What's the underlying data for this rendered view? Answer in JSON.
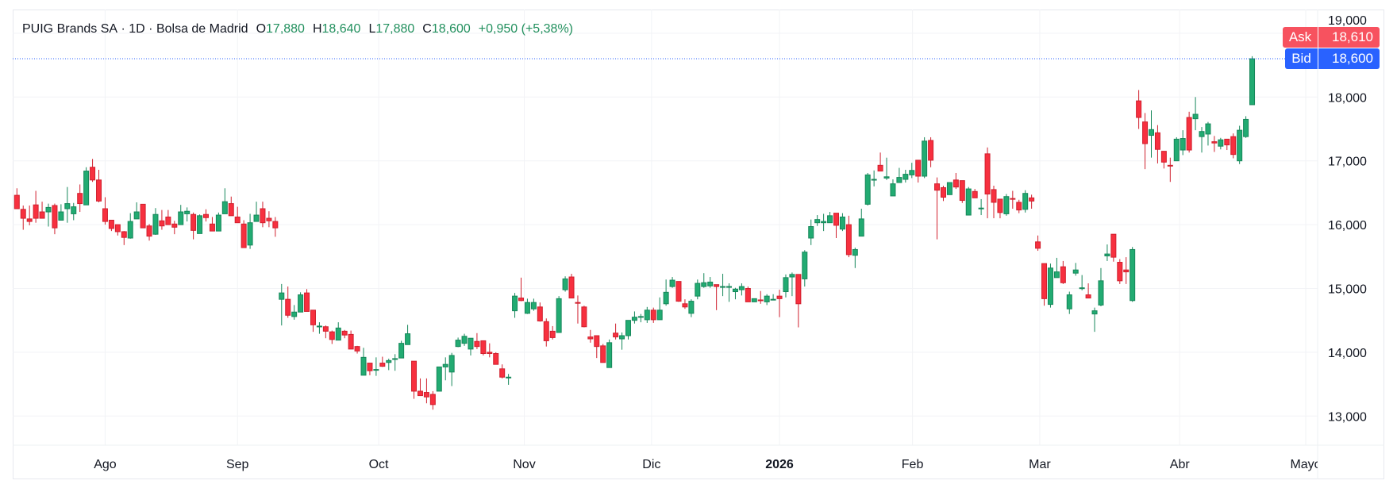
{
  "header": {
    "symbol": "PUIG Brands SA",
    "sep1": " · ",
    "interval": "1D",
    "sep2": " · ",
    "exchange": "Bolsa de Madrid",
    "open_label": "O",
    "open": "17,880",
    "high_label": "H",
    "high": "18,640",
    "low_label": "L",
    "low": "17,880",
    "close_label": "C",
    "close": "18,600",
    "change": "+0,950 (+5,38%)"
  },
  "quote": {
    "ask_label": "Ask",
    "ask": "18,610",
    "bid_label": "Bid",
    "bid": "18,600"
  },
  "colors": {
    "up": "#22ab72",
    "up_border": "#16875a",
    "down": "#f7303f",
    "down_border": "#d0202e",
    "ask": "#f7525f",
    "bid": "#2962ff",
    "grid": "#f2f3f6",
    "text": "#131722",
    "header_value": "#22905e"
  },
  "chart_data": {
    "type": "candlestick",
    "ohlc_order": [
      "open",
      "high",
      "low",
      "close"
    ],
    "ylim": [
      12500,
      19250
    ],
    "grid": true,
    "y_ticks": [
      {
        "value": 13000,
        "label": "13,000"
      },
      {
        "value": 14000,
        "label": "14,000"
      },
      {
        "value": 15000,
        "label": "15,000"
      },
      {
        "value": 16000,
        "label": "16,000"
      },
      {
        "value": 17000,
        "label": "17,000"
      },
      {
        "value": 18000,
        "label": "18,000"
      },
      {
        "value": 19000,
        "label": "19,000"
      }
    ],
    "x_ticks": [
      {
        "bar": 14,
        "label": "Ago",
        "bold": false
      },
      {
        "bar": 35,
        "label": "Sep",
        "bold": false
      },
      {
        "bar": 57.4,
        "label": "Oct",
        "bold": false
      },
      {
        "bar": 80.5,
        "label": "Nov",
        "bold": false
      },
      {
        "bar": 100.7,
        "label": "Dic",
        "bold": false
      },
      {
        "bar": 121,
        "label": "2026",
        "bold": true
      },
      {
        "bar": 142.1,
        "label": "Feb",
        "bold": false
      },
      {
        "bar": 162.3,
        "label": "Mar",
        "bold": false
      },
      {
        "bar": 184.5,
        "label": "Abr",
        "bold": false
      },
      {
        "bar": 204.5,
        "label": "Mayo",
        "bold": false
      }
    ],
    "bid_line": 18600,
    "candles": [
      [
        16460,
        16570,
        16250,
        16250
      ],
      [
        16240,
        16300,
        15920,
        16100
      ],
      [
        16090,
        16300,
        15990,
        16050
      ],
      [
        16310,
        16530,
        16030,
        16100
      ],
      [
        16200,
        16360,
        16100,
        16100
      ],
      [
        16200,
        16330,
        15970,
        16270
      ],
      [
        16300,
        16330,
        15850,
        15950
      ],
      [
        16070,
        16320,
        16070,
        16200
      ],
      [
        16250,
        16590,
        16030,
        16330
      ],
      [
        16170,
        16340,
        16070,
        16280
      ],
      [
        16490,
        16630,
        16200,
        16330
      ],
      [
        16310,
        16900,
        16310,
        16840
      ],
      [
        16900,
        17030,
        16670,
        16700
      ],
      [
        16700,
        16860,
        16350,
        16370
      ],
      [
        16250,
        16430,
        16000,
        16050
      ],
      [
        16070,
        16070,
        15900,
        15940
      ],
      [
        16000,
        16000,
        15830,
        15890
      ],
      [
        15890,
        15900,
        15680,
        15800
      ],
      [
        15790,
        16180,
        15780,
        16050
      ],
      [
        16090,
        16350,
        16090,
        16200
      ],
      [
        16320,
        16320,
        15950,
        15950
      ],
      [
        15980,
        16010,
        15750,
        15820
      ],
      [
        15850,
        16260,
        15840,
        16160
      ],
      [
        16060,
        16230,
        15920,
        15980
      ],
      [
        16120,
        16230,
        16000,
        16000
      ],
      [
        16010,
        16060,
        15850,
        15960
      ],
      [
        16000,
        16310,
        16000,
        16200
      ],
      [
        16170,
        16270,
        16050,
        16210
      ],
      [
        16160,
        16190,
        15770,
        15910
      ],
      [
        15860,
        16160,
        15860,
        16140
      ],
      [
        16160,
        16240,
        16050,
        16110
      ],
      [
        16010,
        16120,
        15900,
        15900
      ],
      [
        15900,
        16190,
        15900,
        16150
      ],
      [
        16170,
        16570,
        16170,
        16360
      ],
      [
        16330,
        16440,
        16140,
        16140
      ],
      [
        16120,
        16280,
        16030,
        16030
      ],
      [
        16010,
        16070,
        15640,
        15640
      ],
      [
        15680,
        16170,
        15620,
        16030
      ],
      [
        16050,
        16360,
        16050,
        16150
      ],
      [
        16250,
        16360,
        15960,
        16030
      ],
      [
        16100,
        16210,
        15960,
        16060
      ],
      [
        16050,
        16120,
        15810,
        15950
      ],
      [
        14830,
        15070,
        14420,
        14930
      ],
      [
        14830,
        15030,
        14540,
        14580
      ],
      [
        14560,
        14740,
        14510,
        14630
      ],
      [
        14630,
        14940,
        14630,
        14900
      ],
      [
        14930,
        14990,
        14640,
        14640
      ],
      [
        14660,
        14660,
        14320,
        14430
      ],
      [
        14400,
        14470,
        14290,
        14410
      ],
      [
        14400,
        14420,
        14220,
        14330
      ],
      [
        14320,
        14340,
        14130,
        14200
      ],
      [
        14190,
        14470,
        14190,
        14380
      ],
      [
        14330,
        14350,
        14220,
        14270
      ],
      [
        14280,
        14340,
        14050,
        14050
      ],
      [
        14090,
        14100,
        13980,
        14020
      ],
      [
        13640,
        14070,
        13640,
        13920
      ],
      [
        13830,
        13830,
        13640,
        13710
      ],
      [
        13720,
        13920,
        13630,
        13730
      ],
      [
        13830,
        13930,
        13770,
        13780
      ],
      [
        13840,
        13900,
        13720,
        13870
      ],
      [
        13890,
        13970,
        13710,
        13900
      ],
      [
        13910,
        14180,
        13910,
        14140
      ],
      [
        14120,
        14430,
        14120,
        14290
      ],
      [
        13860,
        13860,
        13270,
        13390
      ],
      [
        13390,
        13590,
        13320,
        13320
      ],
      [
        13370,
        13590,
        13200,
        13300
      ],
      [
        13340,
        13390,
        13100,
        13180
      ],
      [
        13390,
        13770,
        13390,
        13770
      ],
      [
        13770,
        13920,
        13560,
        13810
      ],
      [
        13690,
        13990,
        13470,
        13950
      ],
      [
        14090,
        14230,
        14080,
        14190
      ],
      [
        14140,
        14290,
        14100,
        14250
      ],
      [
        14050,
        14220,
        13950,
        14220
      ],
      [
        14170,
        14300,
        14050,
        14090
      ],
      [
        14180,
        14180,
        13950,
        13980
      ],
      [
        14000,
        14140,
        13920,
        13980
      ],
      [
        13980,
        14000,
        13810,
        13810
      ],
      [
        13740,
        13810,
        13590,
        13610
      ],
      [
        13600,
        13660,
        13490,
        13610
      ],
      [
        14650,
        14930,
        14540,
        14880
      ],
      [
        14850,
        15170,
        14800,
        14810
      ],
      [
        14610,
        14840,
        14600,
        14780
      ],
      [
        14680,
        14840,
        14650,
        14780
      ],
      [
        14710,
        14780,
        14480,
        14490
      ],
      [
        14480,
        14530,
        14090,
        14180
      ],
      [
        14330,
        14410,
        14200,
        14230
      ],
      [
        14310,
        14880,
        14310,
        14840
      ],
      [
        14980,
        15190,
        14950,
        15150
      ],
      [
        15180,
        15230,
        14850,
        14850
      ],
      [
        14780,
        14890,
        14450,
        14770
      ],
      [
        14710,
        14730,
        14390,
        14400
      ],
      [
        14240,
        14350,
        14150,
        14210
      ],
      [
        14260,
        14260,
        13910,
        14090
      ],
      [
        14100,
        14130,
        13840,
        13840
      ],
      [
        13760,
        14200,
        13760,
        14150
      ],
      [
        14300,
        14450,
        14200,
        14240
      ],
      [
        14210,
        14310,
        14040,
        14260
      ],
      [
        14260,
        14500,
        14200,
        14500
      ],
      [
        14500,
        14640,
        14450,
        14550
      ],
      [
        14550,
        14600,
        14470,
        14560
      ],
      [
        14510,
        14710,
        14460,
        14660
      ],
      [
        14660,
        14700,
        14460,
        14510
      ],
      [
        14510,
        14860,
        14510,
        14660
      ],
      [
        14760,
        15140,
        14730,
        14940
      ],
      [
        15030,
        15180,
        15010,
        15130
      ],
      [
        15110,
        15110,
        14790,
        14800
      ],
      [
        14760,
        14830,
        14680,
        14710
      ],
      [
        14610,
        14830,
        14550,
        14800
      ],
      [
        14880,
        15140,
        14830,
        15080
      ],
      [
        15030,
        15240,
        15010,
        15090
      ],
      [
        15040,
        15180,
        15010,
        15100
      ],
      [
        15060,
        15060,
        14660,
        15030
      ],
      [
        15020,
        15230,
        14880,
        15030
      ],
      [
        15020,
        15080,
        14790,
        15030
      ],
      [
        14950,
        15010,
        14830,
        14990
      ],
      [
        14980,
        15080,
        14890,
        15030
      ],
      [
        15000,
        15030,
        14790,
        14790
      ],
      [
        14790,
        14840,
        14790,
        14840
      ],
      [
        14820,
        14960,
        14760,
        14810
      ],
      [
        14790,
        14910,
        14740,
        14880
      ],
      [
        14820,
        14910,
        14820,
        14830
      ],
      [
        14880,
        14980,
        14550,
        14840
      ],
      [
        14950,
        15220,
        14860,
        15170
      ],
      [
        15180,
        15250,
        14880,
        15220
      ],
      [
        15220,
        15220,
        14390,
        14760
      ],
      [
        15150,
        15600,
        15030,
        15570
      ],
      [
        15790,
        16080,
        15680,
        15970
      ],
      [
        16030,
        16150,
        15980,
        16080
      ],
      [
        16030,
        16170,
        15900,
        16050
      ],
      [
        16030,
        16200,
        16030,
        16140
      ],
      [
        16180,
        16180,
        15790,
        15990
      ],
      [
        15930,
        16180,
        15900,
        16120
      ],
      [
        16000,
        16140,
        15490,
        15530
      ],
      [
        15520,
        15640,
        15320,
        15610
      ],
      [
        15820,
        16250,
        15820,
        16090
      ],
      [
        16320,
        16810,
        16300,
        16780
      ],
      [
        16700,
        16850,
        16600,
        16710
      ],
      [
        16930,
        17130,
        16840,
        16840
      ],
      [
        16730,
        17050,
        16700,
        16750
      ],
      [
        16450,
        16710,
        16450,
        16640
      ],
      [
        16660,
        16890,
        16660,
        16740
      ],
      [
        16710,
        16860,
        16660,
        16790
      ],
      [
        16780,
        16970,
        16730,
        16850
      ],
      [
        17010,
        17010,
        16660,
        16760
      ],
      [
        16760,
        17370,
        16730,
        17310
      ],
      [
        17320,
        17370,
        16900,
        17010
      ],
      [
        16640,
        16740,
        15770,
        16540
      ],
      [
        16580,
        16610,
        16370,
        16430
      ],
      [
        16470,
        16660,
        16470,
        16660
      ],
      [
        16700,
        16810,
        16560,
        16590
      ],
      [
        16690,
        16690,
        16340,
        16380
      ],
      [
        16150,
        16590,
        16150,
        16560
      ],
      [
        16520,
        16560,
        16420,
        16420
      ],
      [
        16250,
        16400,
        16150,
        16260
      ],
      [
        17110,
        17210,
        16100,
        16480
      ],
      [
        16550,
        16610,
        16100,
        16350
      ],
      [
        16400,
        16400,
        16100,
        16190
      ],
      [
        16170,
        16480,
        16140,
        16440
      ],
      [
        16410,
        16530,
        16250,
        16400
      ],
      [
        16350,
        16390,
        16180,
        16230
      ],
      [
        16240,
        16540,
        16190,
        16490
      ],
      [
        16420,
        16470,
        16250,
        16370
      ],
      [
        15730,
        15830,
        15590,
        15630
      ],
      [
        15390,
        15390,
        14730,
        14840
      ],
      [
        14750,
        15390,
        14700,
        15320
      ],
      [
        15170,
        15480,
        15170,
        15260
      ],
      [
        15340,
        15430,
        15070,
        15090
      ],
      [
        14680,
        14950,
        14600,
        14900
      ],
      [
        15240,
        15400,
        15200,
        15290
      ],
      [
        15000,
        15210,
        14970,
        15010
      ],
      [
        14900,
        15080,
        14850,
        14850
      ],
      [
        14600,
        14700,
        14320,
        14650
      ],
      [
        14740,
        15320,
        14720,
        15120
      ],
      [
        15510,
        15690,
        15430,
        15540
      ],
      [
        15850,
        15850,
        15420,
        15490
      ],
      [
        15410,
        15460,
        15070,
        15120
      ],
      [
        15290,
        15490,
        15070,
        15260
      ],
      [
        14810,
        15650,
        14790,
        15610
      ],
      [
        17940,
        18110,
        17500,
        17680
      ],
      [
        17610,
        17750,
        16870,
        17270
      ],
      [
        17400,
        17790,
        17050,
        17490
      ],
      [
        17440,
        17560,
        16960,
        17180
      ],
      [
        17150,
        17150,
        16880,
        16980
      ],
      [
        16930,
        17050,
        16670,
        16920
      ],
      [
        17000,
        17370,
        17000,
        17340
      ],
      [
        17170,
        17480,
        17090,
        17350
      ],
      [
        17680,
        17770,
        17130,
        17170
      ],
      [
        17660,
        18000,
        17480,
        17730
      ],
      [
        17380,
        17530,
        17130,
        17460
      ],
      [
        17420,
        17610,
        17240,
        17580
      ],
      [
        17300,
        17390,
        17140,
        17280
      ],
      [
        17230,
        17360,
        17180,
        17330
      ],
      [
        17340,
        17340,
        17170,
        17250
      ],
      [
        17380,
        17430,
        17040,
        17100
      ],
      [
        17000,
        17550,
        16950,
        17480
      ],
      [
        17380,
        17700,
        17360,
        17650
      ],
      [
        17880,
        18640,
        17880,
        18600
      ]
    ]
  }
}
